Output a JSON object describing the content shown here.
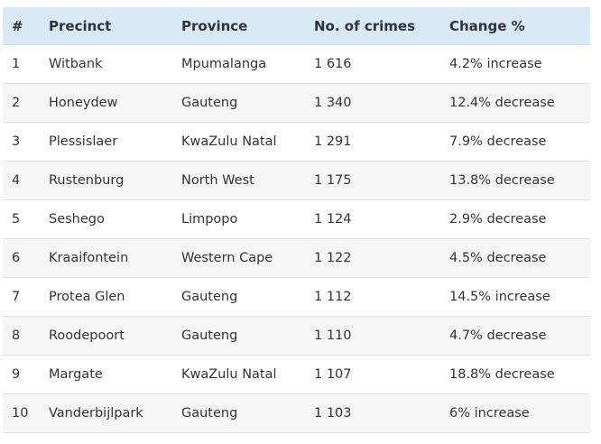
{
  "table": {
    "headers": [
      "#",
      "Precinct",
      "Province",
      "No. of crimes",
      "Change %"
    ],
    "rows": [
      [
        "1",
        "Witbank",
        "Mpumalanga",
        "1 616",
        "4.2% increase"
      ],
      [
        "2",
        "Honeydew",
        "Gauteng",
        "1 340",
        "12.4% decrease"
      ],
      [
        "3",
        "Plessislaer",
        "KwaZulu Natal",
        "1 291",
        "7.9% decrease"
      ],
      [
        "4",
        "Rustenburg",
        "North West",
        "1 175",
        "13.8% decrease"
      ],
      [
        "5",
        "Seshego",
        "Limpopo",
        "1 124",
        "2.9% decrease"
      ],
      [
        "6",
        "Kraaifontein",
        "Western Cape",
        "1 122",
        "4.5% decrease"
      ],
      [
        "7",
        "Protea Glen",
        "Gauteng",
        "1 112",
        "14.5% increase"
      ],
      [
        "8",
        "Roodepoort",
        "Gauteng",
        "1 110",
        "4.7% decrease"
      ],
      [
        "9",
        "Margate",
        "KwaZulu Natal",
        "1 107",
        "18.8% decrease"
      ],
      [
        "10",
        "Vanderbijlpark",
        "Gauteng",
        "1 103",
        "6% increase"
      ]
    ]
  },
  "colors": {
    "header_bg": "#d7eaf6",
    "stripe_bg": "#f6f6f6",
    "text": "#333333"
  }
}
